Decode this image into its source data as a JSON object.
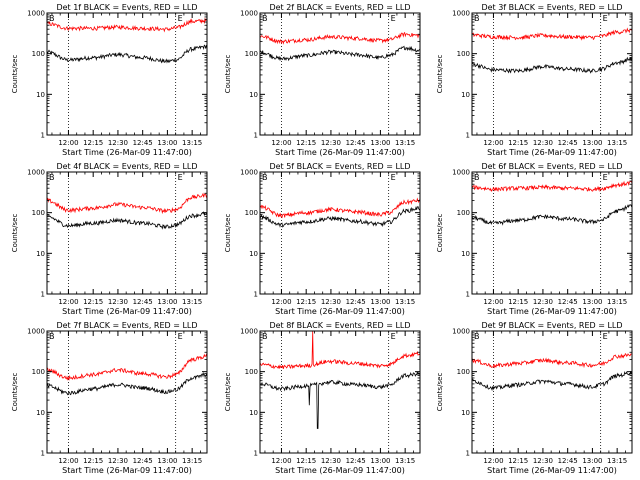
{
  "figure": {
    "ylabel": "Counts/sec",
    "xlabel": "Start Time (26-Mar-09 11:47:00)",
    "yticks": [
      "1",
      "10",
      "100",
      "1000"
    ],
    "xticks": [
      "12:00",
      "12:15",
      "12:30",
      "12:45",
      "13:00",
      "13:15"
    ],
    "marker_left": "B",
    "marker_right": "E",
    "colors": {
      "events": "#000000",
      "lld": "#ff0000"
    }
  },
  "chart_data": [
    {
      "type": "line",
      "title": "Det 1f BLACK = Events, RED = LLD",
      "xlabel": "Start Time (26-Mar-09 11:47:00)",
      "ylabel": "Counts/sec",
      "x_range": [
        "11:47",
        "13:24"
      ],
      "ylim": [
        1,
        1000
      ],
      "yscale": "log",
      "vlines": [
        "12:00",
        "13:05"
      ],
      "x": [
        "11:47",
        "12:00",
        "12:15",
        "12:30",
        "12:45",
        "13:00",
        "13:05",
        "13:15",
        "13:24"
      ],
      "series": [
        {
          "name": "Events",
          "color": "#000000",
          "values": [
            110,
            70,
            80,
            95,
            80,
            65,
            70,
            130,
            150
          ]
        },
        {
          "name": "LLD",
          "color": "#ff0000",
          "values": [
            550,
            420,
            420,
            450,
            420,
            400,
            430,
            620,
            650
          ]
        }
      ]
    },
    {
      "type": "line",
      "title": "Det 2f BLACK = Events, RED = LLD",
      "xlabel": "Start Time (26-Mar-09 11:47:00)",
      "ylabel": "Counts/sec",
      "x_range": [
        "11:47",
        "13:24"
      ],
      "ylim": [
        1,
        1000
      ],
      "yscale": "log",
      "vlines": [
        "12:00",
        "13:05"
      ],
      "x": [
        "11:47",
        "12:00",
        "12:15",
        "12:30",
        "12:45",
        "13:00",
        "13:05",
        "13:15",
        "13:24"
      ],
      "series": [
        {
          "name": "Events",
          "color": "#000000",
          "values": [
            110,
            75,
            90,
            110,
            95,
            80,
            90,
            140,
            120
          ]
        },
        {
          "name": "LLD",
          "color": "#ff0000",
          "values": [
            270,
            200,
            220,
            260,
            240,
            210,
            220,
            300,
            280
          ]
        }
      ]
    },
    {
      "type": "line",
      "title": "Det 3f BLACK = Events, RED = LLD",
      "xlabel": "Start Time (26-Mar-09 11:47:00)",
      "ylabel": "Counts/sec",
      "x_range": [
        "11:47",
        "13:24"
      ],
      "ylim": [
        1,
        1000
      ],
      "yscale": "log",
      "vlines": [
        "12:00",
        "13:05"
      ],
      "x": [
        "11:47",
        "12:00",
        "12:15",
        "12:30",
        "12:45",
        "13:00",
        "13:05",
        "13:15",
        "13:24"
      ],
      "series": [
        {
          "name": "Events",
          "color": "#000000",
          "values": [
            55,
            40,
            38,
            48,
            42,
            38,
            42,
            60,
            75
          ]
        },
        {
          "name": "LLD",
          "color": "#ff0000",
          "values": [
            290,
            260,
            250,
            280,
            260,
            250,
            270,
            340,
            380
          ]
        }
      ]
    },
    {
      "type": "line",
      "title": "Det 4f BLACK = Events, RED = LLD",
      "xlabel": "Start Time (26-Mar-09 11:47:00)",
      "ylabel": "Counts/sec",
      "x_range": [
        "11:47",
        "13:24"
      ],
      "ylim": [
        1,
        1000
      ],
      "yscale": "log",
      "vlines": [
        "12:00",
        "13:05"
      ],
      "x": [
        "11:47",
        "12:00",
        "12:15",
        "12:30",
        "12:45",
        "13:00",
        "13:05",
        "13:15",
        "13:24"
      ],
      "series": [
        {
          "name": "Events",
          "color": "#000000",
          "values": [
            80,
            48,
            55,
            65,
            55,
            45,
            50,
            85,
            95
          ]
        },
        {
          "name": "LLD",
          "color": "#ff0000",
          "values": [
            200,
            115,
            130,
            160,
            135,
            110,
            120,
            240,
            270
          ]
        }
      ]
    },
    {
      "type": "line",
      "title": "Det 5f BLACK = Events, RED = LLD",
      "xlabel": "Start Time (26-Mar-09 11:47:00)",
      "ylabel": "Counts/sec",
      "x_range": [
        "11:47",
        "13:24"
      ],
      "ylim": [
        1,
        1000
      ],
      "yscale": "log",
      "vlines": [
        "12:00",
        "13:05"
      ],
      "x": [
        "11:47",
        "12:00",
        "12:15",
        "12:30",
        "12:45",
        "13:00",
        "13:05",
        "13:15",
        "13:24"
      ],
      "series": [
        {
          "name": "Events",
          "color": "#000000",
          "values": [
            80,
            50,
            60,
            72,
            62,
            52,
            58,
            110,
            130
          ]
        },
        {
          "name": "LLD",
          "color": "#ff0000",
          "values": [
            140,
            85,
            100,
            120,
            105,
            90,
            100,
            180,
            200
          ]
        }
      ]
    },
    {
      "type": "line",
      "title": "Det 6f BLACK = Events, RED = LLD",
      "xlabel": "Start Time (26-Mar-09 11:47:00)",
      "ylabel": "Counts/sec",
      "x_range": [
        "11:47",
        "13:24"
      ],
      "ylim": [
        1,
        1000
      ],
      "yscale": "log",
      "vlines": [
        "12:00",
        "13:05"
      ],
      "x": [
        "11:47",
        "12:00",
        "12:15",
        "12:30",
        "12:45",
        "13:00",
        "13:05",
        "13:15",
        "13:24"
      ],
      "series": [
        {
          "name": "Events",
          "color": "#000000",
          "values": [
            75,
            55,
            65,
            80,
            70,
            60,
            65,
            110,
            150
          ]
        },
        {
          "name": "LLD",
          "color": "#ff0000",
          "values": [
            420,
            380,
            400,
            420,
            400,
            380,
            390,
            480,
            550
          ]
        }
      ]
    },
    {
      "type": "line",
      "title": "Det 7f BLACK = Events, RED = LLD",
      "xlabel": "Start Time (26-Mar-09 11:47:00)",
      "ylabel": "Counts/sec",
      "x_range": [
        "11:47",
        "13:24"
      ],
      "ylim": [
        1,
        1000
      ],
      "yscale": "log",
      "vlines": [
        "12:00",
        "13:05"
      ],
      "x": [
        "11:47",
        "12:00",
        "12:15",
        "12:30",
        "12:45",
        "13:00",
        "13:05",
        "13:15",
        "13:24"
      ],
      "series": [
        {
          "name": "Events",
          "color": "#000000",
          "values": [
            45,
            30,
            38,
            48,
            40,
            32,
            36,
            70,
            85
          ]
        },
        {
          "name": "LLD",
          "color": "#ff0000",
          "values": [
            110,
            70,
            85,
            110,
            90,
            75,
            85,
            200,
            240
          ]
        }
      ]
    },
    {
      "type": "line",
      "title": "Det 8f BLACK = Events, RED = LLD",
      "xlabel": "Start Time (26-Mar-09 11:47:00)",
      "ylabel": "Counts/sec",
      "x_range": [
        "11:47",
        "13:24"
      ],
      "ylim": [
        1,
        1000
      ],
      "yscale": "log",
      "vlines": [
        "12:00",
        "13:05"
      ],
      "x": [
        "11:47",
        "12:00",
        "12:15",
        "12:30",
        "12:45",
        "13:00",
        "13:05",
        "13:15",
        "13:24"
      ],
      "series": [
        {
          "name": "Events",
          "color": "#000000",
          "values": [
            50,
            38,
            45,
            55,
            48,
            42,
            46,
            80,
            90
          ]
        },
        {
          "name": "LLD",
          "color": "#ff0000",
          "values": [
            150,
            130,
            140,
            180,
            160,
            140,
            150,
            250,
            280
          ]
        }
      ],
      "spikes": [
        {
          "series": "LLD",
          "x": "12:19",
          "to": 1000
        },
        {
          "series": "Events",
          "x": "12:17",
          "to": 15
        },
        {
          "series": "Events",
          "x": "12:22",
          "to": 4
        }
      ]
    },
    {
      "type": "line",
      "title": "Det 9f BLACK = Events, RED = LLD",
      "xlabel": "Start Time (26-Mar-09 11:47:00)",
      "ylabel": "Counts/sec",
      "x_range": [
        "11:47",
        "13:24"
      ],
      "ylim": [
        1,
        1000
      ],
      "yscale": "log",
      "vlines": [
        "12:00",
        "13:05"
      ],
      "x": [
        "11:47",
        "12:00",
        "12:15",
        "12:30",
        "12:45",
        "13:00",
        "13:05",
        "13:15",
        "13:24"
      ],
      "series": [
        {
          "name": "Events",
          "color": "#000000",
          "values": [
            60,
            40,
            48,
            58,
            50,
            42,
            48,
            80,
            95
          ]
        },
        {
          "name": "LLD",
          "color": "#ff0000",
          "values": [
            190,
            140,
            160,
            190,
            165,
            145,
            155,
            240,
            260
          ]
        }
      ]
    }
  ]
}
